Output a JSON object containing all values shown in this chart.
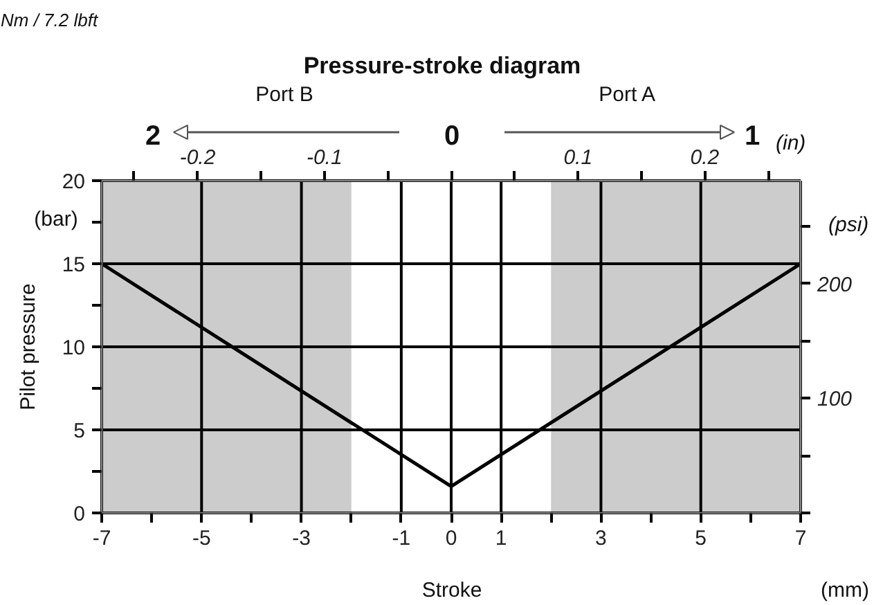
{
  "chart_data": {
    "type": "line",
    "title": "Pressure-stroke diagram",
    "xlabel": "Stroke",
    "ylabel": "Pilot pressure",
    "y2label": "(psi)",
    "x2label": "(in)",
    "annotations": [
      "Nm / 7.2 lbft",
      "Port B",
      "Port A",
      "2",
      "0",
      "1",
      "(bar)",
      "(mm)"
    ],
    "x": [
      -7,
      0,
      7
    ],
    "series": [
      {
        "color": "#000000",
        "values": [
          15,
          1.6,
          15
        ]
      }
    ],
    "xlim": [
      -7,
      7
    ],
    "ylim": [
      0,
      20
    ],
    "xticks": [
      -7,
      {
        "value": -6,
        "label": null
      },
      -5,
      {
        "value": -4,
        "label": null
      },
      -3,
      {
        "value": -2,
        "label": null
      },
      -1,
      0,
      1,
      {
        "value": 2,
        "label": null
      },
      3,
      {
        "value": 4,
        "label": null
      },
      5,
      {
        "value": 6,
        "label": null
      },
      7
    ],
    "yticks": [
      0,
      {
        "value": 2.5,
        "label": null
      },
      5,
      {
        "value": 7.5,
        "label": null
      },
      10,
      {
        "value": 12.5,
        "label": null
      },
      15,
      {
        "value": 17.5,
        "label": null
      },
      20
    ],
    "x2lim": [
      -0.2756,
      0.2756
    ],
    "x2ticks": [
      {
        "value": -0.25,
        "label": null
      },
      -0.2,
      {
        "value": -0.15,
        "label": null
      },
      -0.1,
      {
        "value": -0.05,
        "label": null
      },
      {
        "value": 0,
        "label": null
      },
      {
        "value": 0.05,
        "label": null
      },
      0.1,
      {
        "value": 0.15,
        "label": null
      },
      0.2,
      {
        "value": 0.25,
        "label": null
      }
    ],
    "y2lim": [
      0,
      290
    ],
    "y2ticks": [
      {
        "value": 0,
        "label": null
      },
      {
        "value": 50,
        "label": null
      },
      100,
      {
        "value": 150,
        "label": null
      },
      200,
      {
        "value": 250,
        "label": null
      }
    ],
    "bands": [
      {
        "axis": "x",
        "from": -7,
        "to": -2,
        "color": "#cccccc"
      },
      {
        "axis": "x",
        "from": 2,
        "to": 7,
        "color": "#cccccc"
      }
    ],
    "grid": true,
    "marker": "none",
    "line_style": "solid"
  }
}
